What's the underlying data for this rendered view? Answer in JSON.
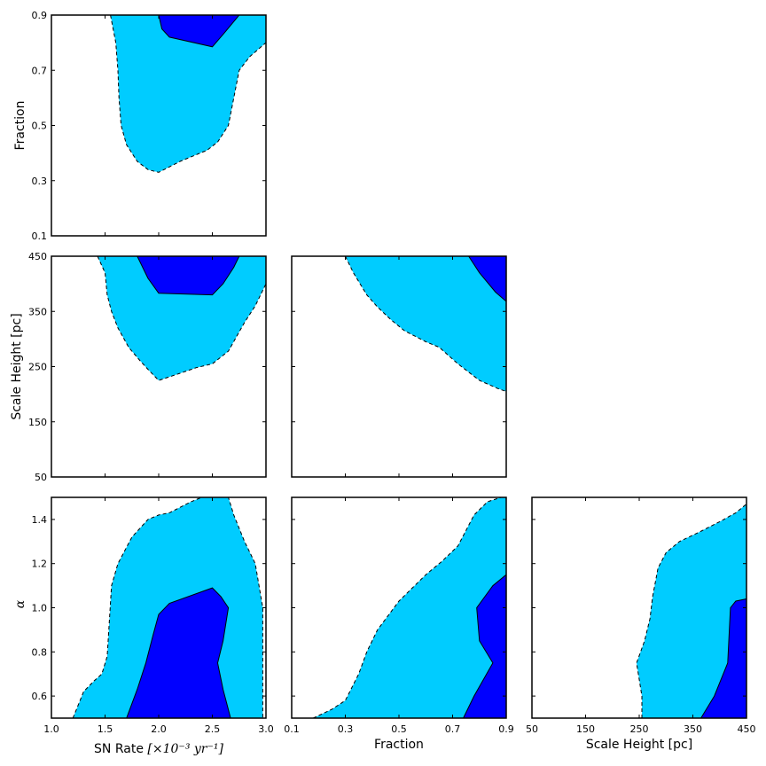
{
  "chart_data": {
    "type": "corner-contour",
    "colors": {
      "outer": "#00ccff",
      "inner": "#0000ff",
      "outline": "#000000",
      "background": "#ffffff"
    },
    "parameters": [
      {
        "key": "sn",
        "label": "SN Rate",
        "unit_label": "[×10⁻³ yr⁻¹]",
        "range": [
          1.0,
          3.0
        ],
        "ticks": [
          1.0,
          1.5,
          2.0,
          2.5,
          3.0
        ],
        "tick_labels": [
          "1.0",
          "1.5",
          "2.0",
          "2.5",
          "3.0"
        ]
      },
      {
        "key": "frac",
        "label": "Fraction",
        "unit_label": "",
        "range": [
          0.1,
          0.9
        ],
        "ticks": [
          0.1,
          0.3,
          0.5,
          0.7,
          0.9
        ],
        "tick_labels": [
          "0.1",
          "0.3",
          "0.5",
          "0.7",
          "0.9"
        ]
      },
      {
        "key": "sh",
        "label": "Scale Height [pc]",
        "unit_label": "",
        "range": [
          50,
          450
        ],
        "ticks": [
          50,
          150,
          250,
          350,
          450
        ],
        "tick_labels": [
          "50",
          "150",
          "250",
          "350",
          "450"
        ]
      },
      {
        "key": "alpha",
        "label": "α",
        "unit_label": "",
        "range": [
          0.5,
          1.5
        ],
        "ticks": [
          0.6,
          0.8,
          1.0,
          1.2,
          1.4
        ],
        "tick_labels": [
          "0.6",
          "0.8",
          "1.0",
          "1.2",
          "1.4"
        ]
      }
    ],
    "panels": [
      {
        "id": "sn-frac",
        "x": "sn",
        "y": "frac",
        "outer": [
          [
            1.55,
            0.9
          ],
          [
            1.6,
            0.8
          ],
          [
            1.62,
            0.7
          ],
          [
            1.63,
            0.6
          ],
          [
            1.65,
            0.5
          ],
          [
            1.7,
            0.43
          ],
          [
            1.8,
            0.37
          ],
          [
            1.9,
            0.34
          ],
          [
            2.0,
            0.33
          ],
          [
            2.2,
            0.37
          ],
          [
            2.45,
            0.41
          ],
          [
            2.55,
            0.44
          ],
          [
            2.65,
            0.5
          ],
          [
            2.7,
            0.6
          ],
          [
            2.75,
            0.7
          ],
          [
            2.85,
            0.75
          ],
          [
            3.0,
            0.8
          ],
          [
            3.0,
            0.9
          ]
        ],
        "inner": [
          [
            2.0,
            0.9
          ],
          [
            2.03,
            0.85
          ],
          [
            2.1,
            0.82
          ],
          [
            2.5,
            0.785
          ],
          [
            2.6,
            0.83
          ],
          [
            2.75,
            0.9
          ]
        ]
      },
      {
        "id": "sn-sh",
        "x": "sn",
        "y": "sh",
        "outer": [
          [
            1.43,
            450
          ],
          [
            1.5,
            420
          ],
          [
            1.52,
            380
          ],
          [
            1.56,
            350
          ],
          [
            1.62,
            320
          ],
          [
            1.72,
            285
          ],
          [
            1.82,
            262
          ],
          [
            1.9,
            245
          ],
          [
            2.0,
            225
          ],
          [
            2.2,
            238
          ],
          [
            2.35,
            248
          ],
          [
            2.5,
            255
          ],
          [
            2.65,
            278
          ],
          [
            2.8,
            330
          ],
          [
            2.9,
            360
          ],
          [
            3.0,
            400
          ],
          [
            3.0,
            450
          ]
        ],
        "inner": [
          [
            1.8,
            450
          ],
          [
            1.9,
            410
          ],
          [
            2.0,
            383
          ],
          [
            2.5,
            380
          ],
          [
            2.6,
            400
          ],
          [
            2.7,
            430
          ],
          [
            2.75,
            450
          ]
        ]
      },
      {
        "id": "frac-sh",
        "x": "frac",
        "y": "sh",
        "outer": [
          [
            0.3,
            450
          ],
          [
            0.33,
            420
          ],
          [
            0.38,
            380
          ],
          [
            0.42,
            358
          ],
          [
            0.47,
            335
          ],
          [
            0.52,
            315
          ],
          [
            0.6,
            295
          ],
          [
            0.65,
            285
          ],
          [
            0.72,
            255
          ],
          [
            0.8,
            225
          ],
          [
            0.87,
            210
          ],
          [
            0.9,
            205
          ],
          [
            0.9,
            450
          ]
        ],
        "inner": [
          [
            0.76,
            450
          ],
          [
            0.8,
            420
          ],
          [
            0.86,
            385
          ],
          [
            0.9,
            368
          ],
          [
            0.9,
            450
          ]
        ]
      },
      {
        "id": "sn-alpha",
        "x": "sn",
        "y": "alpha",
        "outer": [
          [
            1.2,
            0.5
          ],
          [
            1.25,
            0.56
          ],
          [
            1.3,
            0.62
          ],
          [
            1.4,
            0.67
          ],
          [
            1.47,
            0.7
          ],
          [
            1.52,
            0.78
          ],
          [
            1.56,
            1.1
          ],
          [
            1.62,
            1.2
          ],
          [
            1.75,
            1.32
          ],
          [
            1.9,
            1.4
          ],
          [
            2.0,
            1.42
          ],
          [
            2.1,
            1.43
          ],
          [
            2.3,
            1.48
          ],
          [
            2.4,
            1.5
          ],
          [
            2.65,
            1.5
          ],
          [
            2.7,
            1.42
          ],
          [
            2.8,
            1.3
          ],
          [
            2.85,
            1.25
          ],
          [
            2.9,
            1.2
          ],
          [
            2.97,
            1.0
          ],
          [
            2.97,
            0.5
          ]
        ],
        "inner": [
          [
            1.7,
            0.5
          ],
          [
            1.8,
            0.63
          ],
          [
            1.88,
            0.75
          ],
          [
            1.95,
            0.88
          ],
          [
            2.0,
            0.97
          ],
          [
            2.1,
            1.02
          ],
          [
            2.5,
            1.09
          ],
          [
            2.58,
            1.05
          ],
          [
            2.65,
            1.0
          ],
          [
            2.6,
            0.85
          ],
          [
            2.55,
            0.75
          ],
          [
            2.6,
            0.63
          ],
          [
            2.67,
            0.5
          ]
        ]
      },
      {
        "id": "frac-alpha",
        "x": "frac",
        "y": "alpha",
        "outer": [
          [
            0.18,
            0.5
          ],
          [
            0.25,
            0.54
          ],
          [
            0.3,
            0.58
          ],
          [
            0.35,
            0.7
          ],
          [
            0.38,
            0.8
          ],
          [
            0.42,
            0.9
          ],
          [
            0.5,
            1.03
          ],
          [
            0.6,
            1.15
          ],
          [
            0.66,
            1.21
          ],
          [
            0.72,
            1.28
          ],
          [
            0.78,
            1.42
          ],
          [
            0.83,
            1.48
          ],
          [
            0.88,
            1.5
          ],
          [
            0.9,
            1.5
          ],
          [
            0.9,
            0.5
          ]
        ],
        "inner": [
          [
            0.74,
            0.5
          ],
          [
            0.78,
            0.6
          ],
          [
            0.85,
            0.75
          ],
          [
            0.8,
            0.85
          ],
          [
            0.79,
            1.0
          ],
          [
            0.85,
            1.1
          ],
          [
            0.9,
            1.15
          ],
          [
            0.9,
            0.5
          ]
        ]
      },
      {
        "id": "sh-alpha",
        "x": "sh",
        "y": "alpha",
        "outer": [
          [
            255,
            0.5
          ],
          [
            255,
            0.6
          ],
          [
            245,
            0.75
          ],
          [
            260,
            0.85
          ],
          [
            270,
            0.95
          ],
          [
            275,
            1.05
          ],
          [
            285,
            1.18
          ],
          [
            300,
            1.25
          ],
          [
            325,
            1.3
          ],
          [
            360,
            1.34
          ],
          [
            400,
            1.39
          ],
          [
            430,
            1.43
          ],
          [
            450,
            1.47
          ],
          [
            450,
            0.5
          ]
        ],
        "inner": [
          [
            365,
            0.5
          ],
          [
            390,
            0.6
          ],
          [
            415,
            0.75
          ],
          [
            420,
            1.0
          ],
          [
            430,
            1.03
          ],
          [
            450,
            1.04
          ],
          [
            450,
            0.5
          ]
        ]
      }
    ]
  }
}
